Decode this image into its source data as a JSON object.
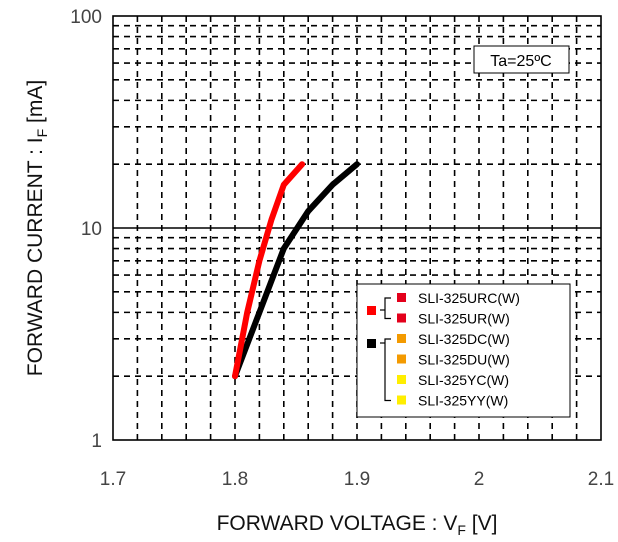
{
  "chart_data": {
    "type": "line",
    "xlabel": {
      "main": "FORWARD VOLTAGE : V",
      "sub": "F",
      "unit": " [V]"
    },
    "ylabel": {
      "main": "FORWARD CURRENT : I",
      "sub": "F",
      "unit": " [mA]"
    },
    "xlim": [
      1.7,
      2.1
    ],
    "ylim": [
      1,
      100
    ],
    "yscale": "log",
    "x_ticks": [
      "1.7",
      "1.8",
      "1.9",
      "2",
      "2.1"
    ],
    "y_ticks": [
      "1",
      "10",
      "100"
    ],
    "grid": "dashed minor, solid at decades",
    "annotation": "Ta=25ºC",
    "series": [
      {
        "color": "#ff0000",
        "x": [
          1.8,
          1.81,
          1.82,
          1.83,
          1.84,
          1.855
        ],
        "y": [
          2,
          4,
          7,
          11,
          16,
          20
        ]
      },
      {
        "color": "#000000",
        "x": [
          1.8,
          1.82,
          1.84,
          1.86,
          1.88,
          1.9
        ],
        "y": [
          2,
          4,
          8,
          12,
          16,
          20
        ]
      }
    ],
    "legend": {
      "placement": "lower-right",
      "groups": [
        {
          "color": "#ff0000",
          "items": [
            {
              "label": "SLI-325URC(W)",
              "color": "#e3001b"
            },
            {
              "label": "SLI-325UR(W)",
              "color": "#e3001b"
            }
          ]
        },
        {
          "color": "#000000",
          "items": [
            {
              "label": "SLI-325DC(W)",
              "color": "#f39a00"
            },
            {
              "label": "SLI-325DU(W)",
              "color": "#f39a00"
            },
            {
              "label": "SLI-325YC(W)",
              "color": "#ffee00"
            },
            {
              "label": "SLI-325YY(W)",
              "color": "#ffee00"
            }
          ]
        }
      ]
    }
  }
}
